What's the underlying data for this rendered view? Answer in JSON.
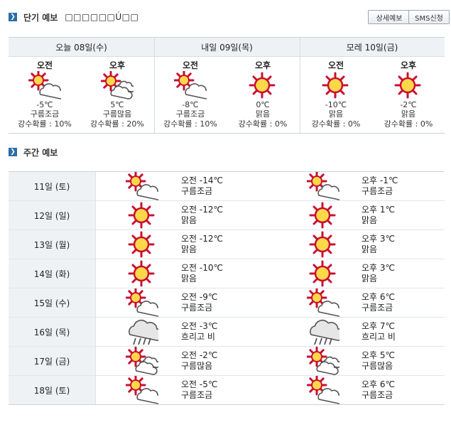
{
  "short_forecast": {
    "title": "단기 예보",
    "subtitle": "□□□□□□Ú□□",
    "detail_button": "상세예보",
    "sms_button": "SMS신청",
    "days": [
      {
        "label": "오늘 08일(수)",
        "am": {
          "label": "오전",
          "icon": "sun-cloud-icon",
          "temp": "-5℃",
          "cond": "구름조금",
          "rain": "강수확률 : 10%"
        },
        "pm": {
          "label": "오후",
          "icon": "sun-clouds-icon",
          "temp": "5℃",
          "cond": "구름많음",
          "rain": "강수확률 : 20%"
        }
      },
      {
        "label": "내일 09일(목)",
        "am": {
          "label": "오전",
          "icon": "sun-cloud-icon",
          "temp": "-8℃",
          "cond": "구름조금",
          "rain": "강수확률 : 10%"
        },
        "pm": {
          "label": "오후",
          "icon": "sun-icon",
          "temp": "0℃",
          "cond": "맑음",
          "rain": "강수확률 : 0%"
        }
      },
      {
        "label": "모레 10일(금)",
        "am": {
          "label": "오전",
          "icon": "sun-icon",
          "temp": "-10℃",
          "cond": "맑음",
          "rain": "강수확률 : 0%"
        },
        "pm": {
          "label": "오후",
          "icon": "sun-icon",
          "temp": "-2℃",
          "cond": "맑음",
          "rain": "강수확률 : 0%"
        }
      }
    ]
  },
  "weekly_forecast": {
    "title": "주간 예보",
    "rows": [
      {
        "date": "11일 (토)",
        "am_icon": "sun-cloud-icon",
        "am_temp": "오전 -14℃",
        "am_cond": "구름조금",
        "pm_icon": "sun-cloud-icon",
        "pm_temp": "오후 -1℃",
        "pm_cond": "구름조금"
      },
      {
        "date": "12일 (일)",
        "am_icon": "sun-icon",
        "am_temp": "오전 -12℃",
        "am_cond": "맑음",
        "pm_icon": "sun-icon",
        "pm_temp": "오후 1℃",
        "pm_cond": "맑음"
      },
      {
        "date": "13일 (월)",
        "am_icon": "sun-icon",
        "am_temp": "오전 -12℃",
        "am_cond": "맑음",
        "pm_icon": "sun-icon",
        "pm_temp": "오후 3℃",
        "pm_cond": "맑음"
      },
      {
        "date": "14일 (화)",
        "am_icon": "sun-icon",
        "am_temp": "오전 -10℃",
        "am_cond": "맑음",
        "pm_icon": "sun-icon",
        "pm_temp": "오후 3℃",
        "pm_cond": "맑음"
      },
      {
        "date": "15일 (수)",
        "am_icon": "sun-cloud-icon",
        "am_temp": "오전 -9℃",
        "am_cond": "구름조금",
        "pm_icon": "sun-cloud-icon",
        "pm_temp": "오후 6℃",
        "pm_cond": "구름조금"
      },
      {
        "date": "16일 (목)",
        "am_icon": "rain-cloud-icon",
        "am_temp": "오전 -3℃",
        "am_cond": "흐리고 비",
        "pm_icon": "rain-cloud-icon",
        "pm_temp": "오후 7℃",
        "pm_cond": "흐리고 비"
      },
      {
        "date": "17일 (금)",
        "am_icon": "sun-clouds-icon",
        "am_temp": "오전 -2℃",
        "am_cond": "구름많음",
        "pm_icon": "sun-clouds-icon",
        "pm_temp": "오후 5℃",
        "pm_cond": "구름많음"
      },
      {
        "date": "18일 (토)",
        "am_icon": "sun-cloud-icon",
        "am_temp": "오전 -5℃",
        "am_cond": "구름조금",
        "pm_icon": "sun-cloud-icon",
        "pm_temp": "오후 6℃",
        "pm_cond": "구름조금"
      }
    ]
  },
  "colors": {
    "accent": "#2b6ca8",
    "sun_ray": "#c8102e",
    "sun_fill": "#ffd84a",
    "cloud": "#555555",
    "header_bg": "#eef2f5"
  }
}
